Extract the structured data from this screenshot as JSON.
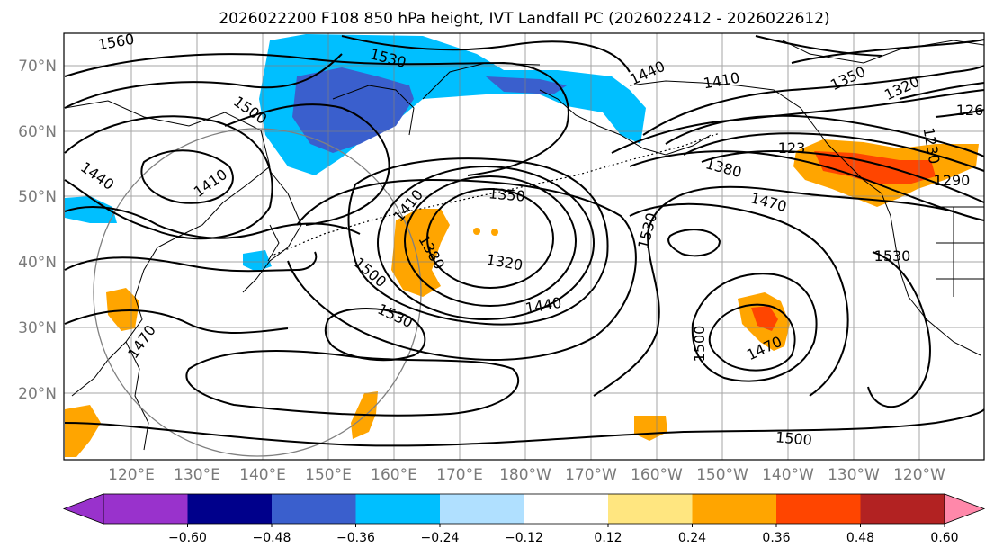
{
  "title": "2026022200 F108 850 hPa height, IVT Landfall PC (2026022412 - 2026022612)",
  "map": {
    "lat_labels": [
      "70°N",
      "60°N",
      "50°N",
      "40°N",
      "30°N",
      "20°N"
    ],
    "lon_labels": [
      "120°E",
      "130°E",
      "140°E",
      "150°E",
      "160°E",
      "170°E",
      "180°W",
      "170°W",
      "160°W",
      "150°W",
      "140°W",
      "130°W",
      "120°W"
    ],
    "contour_labels": [
      {
        "id": "c1560",
        "text": "1560"
      },
      {
        "id": "c1530a",
        "text": "1530"
      },
      {
        "id": "c1500a",
        "text": "1500"
      },
      {
        "id": "c1440a",
        "text": "1440"
      },
      {
        "id": "c1410a",
        "text": "1410"
      },
      {
        "id": "c1440b",
        "text": "1440"
      },
      {
        "id": "c1410b",
        "text": "1410"
      },
      {
        "id": "c1350a",
        "text": "1350"
      },
      {
        "id": "c1320a",
        "text": "1320"
      },
      {
        "id": "c1260",
        "text": "126"
      },
      {
        "id": "c1230a",
        "text": "123"
      },
      {
        "id": "c1230b",
        "text": "1230"
      },
      {
        "id": "c1290",
        "text": "1290"
      },
      {
        "id": "c1380a",
        "text": "1380"
      },
      {
        "id": "c1470a",
        "text": "1470"
      },
      {
        "id": "c1410c",
        "text": "1410"
      },
      {
        "id": "c1350b",
        "text": "1350"
      },
      {
        "id": "c1380b",
        "text": "1380"
      },
      {
        "id": "c1320b",
        "text": "1320"
      },
      {
        "id": "c1500b",
        "text": "1500"
      },
      {
        "id": "c1530b",
        "text": "1530"
      },
      {
        "id": "c1440c",
        "text": "1440"
      },
      {
        "id": "c1530c",
        "text": "1530"
      },
      {
        "id": "c1530d",
        "text": "1530"
      },
      {
        "id": "c1500c",
        "text": "1500"
      },
      {
        "id": "c1470b",
        "text": "1470"
      },
      {
        "id": "c1470c",
        "text": "1470"
      },
      {
        "id": "c1500d",
        "text": "1500"
      }
    ]
  },
  "colorbar": {
    "ticks": [
      "−0.60",
      "−0.48",
      "−0.36",
      "−0.24",
      "−0.12",
      "0.12",
      "0.24",
      "0.36",
      "0.48",
      "0.60"
    ],
    "colors": [
      "#9932cc",
      "#00008b",
      "#3a5fcd",
      "#00bfff",
      "#b0e0ff",
      "#ffffff",
      "#ffe680",
      "#ffa500",
      "#ff4500",
      "#b22222",
      "#ff88aa"
    ]
  }
}
